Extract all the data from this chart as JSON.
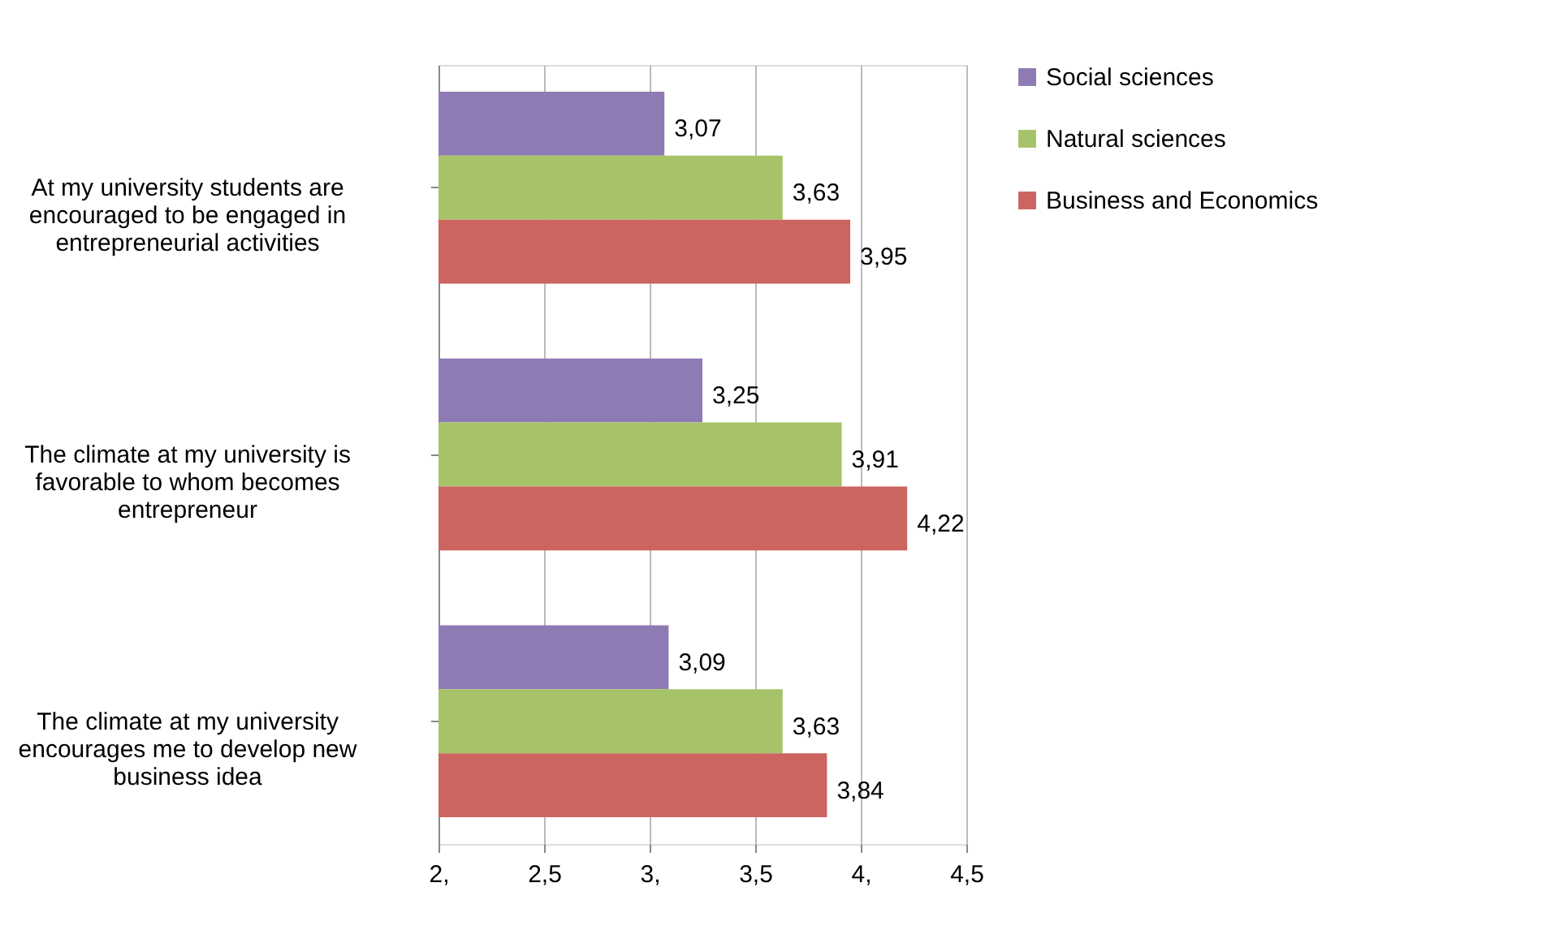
{
  "chart_data": {
    "type": "bar",
    "orientation": "horizontal",
    "categories": [
      "At my university students are encouraged to be engaged in entrepreneurial activities",
      "The climate at my university is favorable to whom becomes entrepreneur",
      "The climate at my university encourages me to develop new business idea"
    ],
    "series": [
      {
        "name": "Social sciences",
        "color": "#8f7bb4",
        "values": [
          3.07,
          3.25,
          3.09
        ],
        "value_labels": [
          "3,07",
          "3,25",
          "3,09"
        ]
      },
      {
        "name": "Natural sciences",
        "color": "#a7c36a",
        "values": [
          3.63,
          3.91,
          3.63
        ],
        "value_labels": [
          "3,63",
          "3,91",
          "3,63"
        ]
      },
      {
        "name": "Business and Economics",
        "color": "#cc645f",
        "values": [
          3.95,
          4.22,
          3.84
        ],
        "value_labels": [
          "3,95",
          "4,22",
          "3,84"
        ]
      }
    ],
    "xlim": [
      2,
      4.5
    ],
    "xticks": [
      {
        "value": 2,
        "label": "2,"
      },
      {
        "value": 2.5,
        "label": "2,5"
      },
      {
        "value": 3,
        "label": "3,"
      },
      {
        "value": 3.5,
        "label": "3,5"
      },
      {
        "value": 4,
        "label": "4,"
      },
      {
        "value": 4.5,
        "label": "4,5"
      }
    ],
    "grid": "x",
    "legend": "right"
  }
}
